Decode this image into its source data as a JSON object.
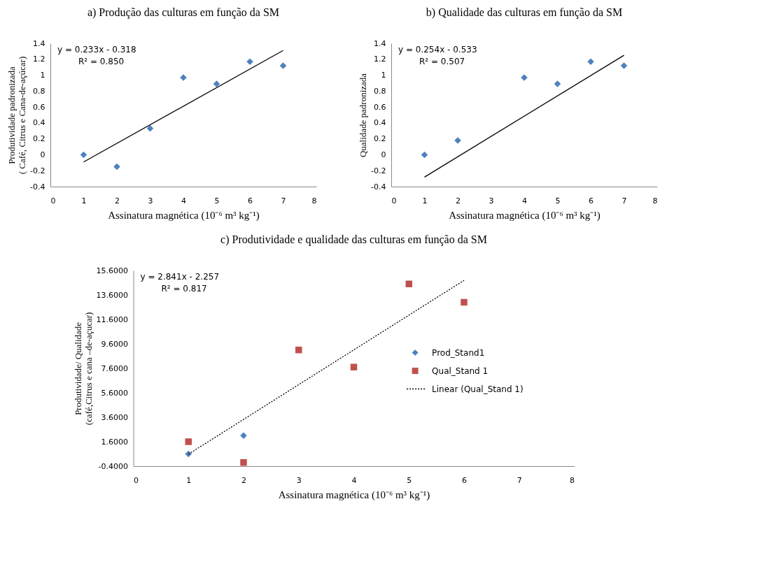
{
  "chart_data": [
    {
      "type": "scatter",
      "title": "a)  Produção das culturas em função da SM",
      "xlabel": "Assinatura magnética (10⁻⁶ m³ kg⁻¹)",
      "ylabel": "Produtividade padronizada\n( Café, Citrus e Cana-de-açúcar)",
      "xlim": [
        0,
        8
      ],
      "xticks": [
        0,
        1,
        2,
        3,
        4,
        5,
        6,
        7,
        8
      ],
      "ylim": [
        -0.4,
        1.4
      ],
      "yticks": [
        -0.4,
        -0.2,
        0,
        0.2,
        0.4,
        0.6,
        0.8,
        1,
        1.2,
        1.4
      ],
      "grid": false,
      "series": [
        {
          "marker": "diamond",
          "color": "#4f81bd",
          "x": [
            1,
            2,
            3,
            4,
            5,
            6,
            7
          ],
          "values": [
            0,
            -0.15,
            0.33,
            0.97,
            0.89,
            1.17,
            1.12
          ]
        },
        {
          "type": "line",
          "line_style": "solid",
          "color": "#000000",
          "x": [
            1,
            7
          ],
          "values": [
            -0.09,
            1.31
          ]
        }
      ],
      "annotations": [
        "y = 0.233x - 0.318",
        "R² = 0.850"
      ]
    },
    {
      "type": "scatter",
      "title": "b) Qualidade das culturas em função da SM",
      "xlabel": "Assinatura magnética (10⁻⁶ m³ kg⁻¹)",
      "ylabel": "Qualidade padronizada",
      "xlim": [
        0,
        8
      ],
      "xticks": [
        0,
        1,
        2,
        3,
        4,
        5,
        6,
        7,
        8
      ],
      "ylim": [
        -0.4,
        1.4
      ],
      "yticks": [
        -0.4,
        -0.2,
        0,
        0.2,
        0.4,
        0.6,
        0.8,
        1,
        1.2,
        1.4
      ],
      "grid": false,
      "series": [
        {
          "marker": "diamond",
          "color": "#4f81bd",
          "x": [
            1,
            2,
            4,
            5,
            6,
            7
          ],
          "values": [
            0,
            0.18,
            0.97,
            0.89,
            1.17,
            1.12
          ]
        },
        {
          "type": "line",
          "line_style": "solid",
          "color": "#000000",
          "x": [
            1,
            7
          ],
          "values": [
            -0.28,
            1.25
          ]
        }
      ],
      "annotations": [
        "y = 0.254x - 0.533",
        "R² = 0.507"
      ]
    },
    {
      "type": "scatter",
      "title": "c) Produtividade e qualidade das culturas em função da SM",
      "xlabel": "Assinatura magnética (10⁻⁶ m³ kg⁻¹)",
      "ylabel": "Produtividade/ Qualidade\n(café,Citrus e cana –de-açucar)",
      "xlim": [
        0,
        8
      ],
      "xticks": [
        0,
        1,
        2,
        3,
        4,
        5,
        6,
        7,
        8
      ],
      "ylim": [
        -0.4,
        15.6
      ],
      "yticks": [
        {
          "value": -0.4,
          "label": "-0.4000"
        },
        {
          "value": 1.6,
          "label": "1.6000"
        },
        {
          "value": 3.6,
          "label": "3.6000"
        },
        {
          "value": 5.6,
          "label": "5.6000"
        },
        {
          "value": 7.6,
          "label": "7.6000"
        },
        {
          "value": 9.6,
          "label": "9.6000"
        },
        {
          "value": 11.6,
          "label": "11.6000"
        },
        {
          "value": 13.6,
          "label": "13.6000"
        },
        {
          "value": 15.6,
          "label": "15.6000"
        }
      ],
      "grid": false,
      "legend": "right",
      "series": [
        {
          "name": "Prod_Stand1",
          "marker": "diamond",
          "color": "#4f81bd",
          "x": [
            1,
            2
          ],
          "values": [
            0.6,
            2.1
          ]
        },
        {
          "name": "Qual_Stand 1",
          "marker": "square",
          "color": "#c0504d",
          "x": [
            1,
            2,
            3,
            4,
            5,
            6
          ],
          "values": [
            1.6,
            -0.1,
            9.1,
            7.7,
            14.5,
            13.0
          ]
        },
        {
          "type": "line",
          "name": "Linear (Qual_Stand 1)",
          "line_style": "dotted",
          "color": "#000000",
          "x": [
            1,
            6
          ],
          "values": [
            0.58,
            14.79
          ]
        }
      ],
      "annotations": [
        "y = 2.841x - 2.257",
        "R² = 0.817"
      ]
    }
  ]
}
